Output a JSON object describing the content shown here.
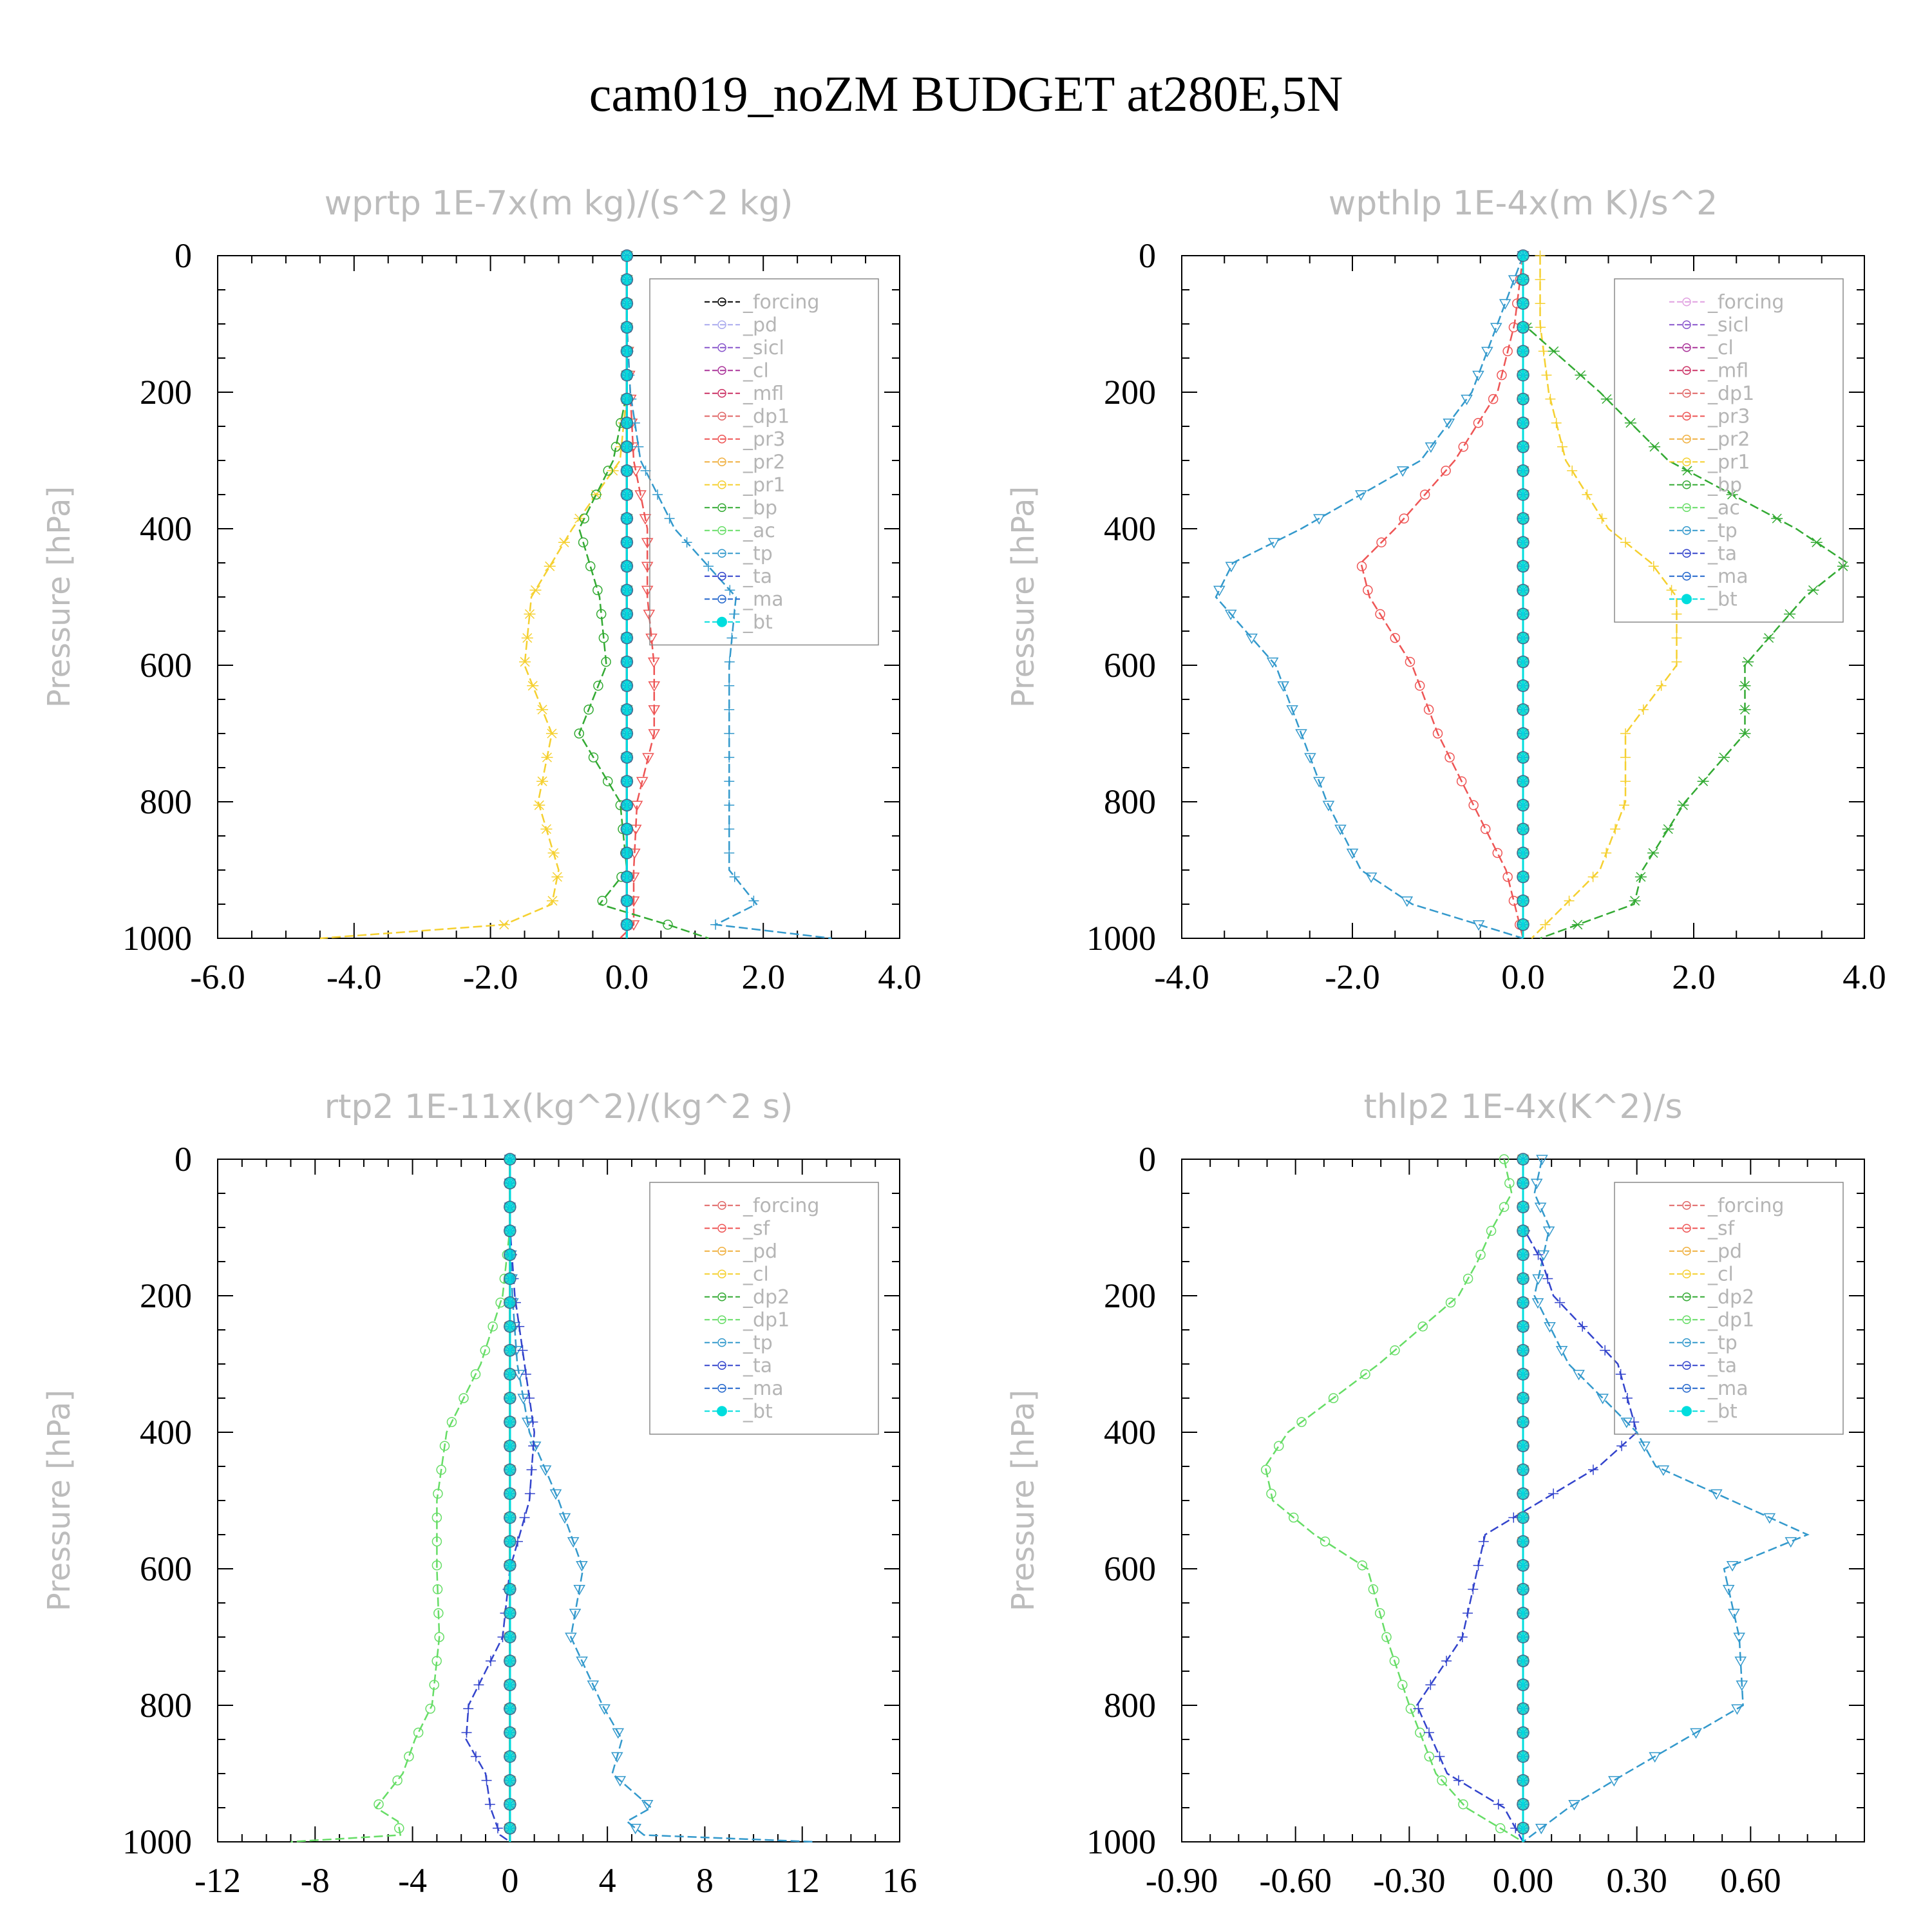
{
  "title": "cam019_noZM  BUDGET at280E,5N",
  "chart_data": [
    {
      "type": "line",
      "title": "wprtp   1E-7x(m kg)/(s^2 kg)",
      "ylabel": "Pressure [hPa]",
      "xlim": [
        -6.0,
        4.0
      ],
      "ylim": [
        1000,
        0
      ],
      "xticks": [
        "-6.0",
        "-4.0",
        "-2.0",
        "0.0",
        "2.0",
        "4.0"
      ],
      "yticks": [
        "0",
        "200",
        "400",
        "600",
        "800",
        "1000"
      ],
      "legend_position": "upper-right",
      "levels": [
        0,
        100,
        200,
        300,
        400,
        500,
        600,
        700,
        800,
        900,
        950,
        980,
        1000
      ],
      "series": [
        {
          "name": "_forcing",
          "color": "#000000",
          "values": [
            0,
            0,
            0,
            0,
            0,
            0,
            0,
            0,
            0,
            0,
            0,
            0,
            0
          ]
        },
        {
          "name": "_pd",
          "color": "#aaaaee",
          "values": [
            0,
            0,
            0,
            0,
            0,
            0,
            0,
            0,
            0,
            0,
            0,
            0,
            0
          ]
        },
        {
          "name": "_sicl",
          "color": "#8855cc",
          "values": [
            0,
            0,
            0,
            0,
            0,
            0,
            0,
            0,
            0,
            0,
            0,
            0,
            0
          ]
        },
        {
          "name": "_cl",
          "color": "#aa3399",
          "values": [
            0,
            0,
            0,
            0,
            0,
            0,
            0,
            0,
            0,
            0,
            0,
            0,
            0
          ]
        },
        {
          "name": "_mfl",
          "color": "#cc3366",
          "values": [
            0,
            0,
            0,
            0,
            0,
            0,
            0,
            0,
            0,
            0,
            0,
            0,
            0
          ]
        },
        {
          "name": "_dp1",
          "color": "#e06666",
          "values": [
            0,
            0,
            0,
            0,
            0,
            0,
            0,
            0,
            0,
            0,
            0,
            0,
            0
          ]
        },
        {
          "name": "_pr3",
          "color": "#ee5555",
          "values": [
            0,
            0,
            0.05,
            0.1,
            0.3,
            0.3,
            0.4,
            0.4,
            0.15,
            0.1,
            0.1,
            0.1,
            -0.1
          ]
        },
        {
          "name": "_pr2",
          "color": "#f0b040",
          "values": [
            0,
            0,
            0,
            0,
            0,
            0,
            0,
            0,
            0,
            0,
            0,
            0,
            0
          ]
        },
        {
          "name": "_pr1",
          "color": "#f5d030",
          "values": [
            0,
            0,
            0,
            -0.1,
            -0.8,
            -1.4,
            -1.5,
            -1.1,
            -1.3,
            -1.0,
            -1.1,
            -1.8,
            -4.5
          ]
        },
        {
          "name": "_bp",
          "color": "#33aa33",
          "values": [
            0,
            0,
            0,
            -0.2,
            -0.7,
            -0.4,
            -0.3,
            -0.7,
            -0.1,
            0.0,
            -0.4,
            0.6,
            1.2
          ]
        },
        {
          "name": "_ac",
          "color": "#66dd66",
          "values": [
            0,
            0,
            0,
            0,
            0,
            0,
            0,
            0,
            0,
            0,
            0,
            0,
            0
          ]
        },
        {
          "name": "_tp",
          "color": "#3399cc",
          "values": [
            0,
            0,
            0.05,
            0.2,
            0.7,
            1.6,
            1.5,
            1.5,
            1.5,
            1.5,
            1.9,
            1.3,
            3.0
          ]
        },
        {
          "name": "_ta",
          "color": "#3344cc",
          "values": [
            0,
            0,
            0,
            0,
            0,
            0,
            0,
            0,
            0,
            0,
            0,
            0,
            0
          ]
        },
        {
          "name": "_ma",
          "color": "#2266cc",
          "values": [
            0,
            0,
            0,
            0,
            0,
            0,
            0,
            0,
            0,
            0,
            0,
            0,
            0
          ]
        },
        {
          "name": "_bt",
          "color": "#00dddd",
          "values": [
            0,
            0,
            0,
            0,
            0,
            0,
            0,
            0,
            0,
            0,
            0,
            0,
            0
          ]
        }
      ]
    },
    {
      "type": "line",
      "title": "wpthlp   1E-4x(m K)/s^2",
      "ylabel": "Pressure [hPa]",
      "xlim": [
        -4.0,
        4.0
      ],
      "ylim": [
        1000,
        0
      ],
      "xticks": [
        "-4.0",
        "-2.0",
        "0.0",
        "2.0",
        "4.0"
      ],
      "yticks": [
        "0",
        "200",
        "400",
        "600",
        "800",
        "1000"
      ],
      "legend_position": "upper-right",
      "levels": [
        0,
        100,
        200,
        300,
        400,
        450,
        500,
        600,
        700,
        800,
        900,
        950,
        1000
      ],
      "series": [
        {
          "name": "_forcing",
          "color": "#e0a0e0",
          "values": [
            0,
            0,
            0,
            0,
            0,
            0,
            0,
            0,
            0,
            0,
            0,
            0,
            0
          ]
        },
        {
          "name": "_sicl",
          "color": "#8855cc",
          "values": [
            0,
            0,
            0,
            0,
            0,
            0,
            0,
            0,
            0,
            0,
            0,
            0,
            0
          ]
        },
        {
          "name": "_cl",
          "color": "#aa3399",
          "values": [
            0,
            0,
            0,
            0,
            0,
            0,
            0,
            0,
            0,
            0,
            0,
            0,
            0
          ]
        },
        {
          "name": "_mfl",
          "color": "#cc3366",
          "values": [
            0,
            0,
            0,
            0,
            0,
            0,
            0,
            0,
            0,
            0,
            0,
            0,
            0
          ]
        },
        {
          "name": "_dp1",
          "color": "#e06666",
          "values": [
            0,
            0,
            0,
            0,
            0,
            0,
            0,
            0,
            0,
            0,
            0,
            0,
            0
          ]
        },
        {
          "name": "_pr3",
          "color": "#ee5555",
          "values": [
            0,
            -0.1,
            -0.3,
            -0.8,
            -1.5,
            -1.9,
            -1.8,
            -1.3,
            -1.0,
            -0.6,
            -0.2,
            -0.1,
            0
          ]
        },
        {
          "name": "_pr2",
          "color": "#f0b040",
          "values": [
            0,
            0,
            0,
            0,
            0,
            0,
            0,
            0,
            0,
            0,
            0,
            0,
            0
          ]
        },
        {
          "name": "_pr1",
          "color": "#f5d030",
          "values": [
            0.2,
            0.2,
            0.3,
            0.5,
            1.0,
            1.5,
            1.8,
            1.8,
            1.2,
            1.2,
            0.9,
            0.5,
            0.1
          ]
        },
        {
          "name": "_bp",
          "color": "#33aa33",
          "values": [
            0,
            0,
            0.9,
            1.7,
            3.2,
            3.8,
            3.3,
            2.6,
            2.6,
            1.9,
            1.4,
            1.3,
            0.2
          ]
        },
        {
          "name": "_ac",
          "color": "#66dd66",
          "values": [
            0,
            0,
            0,
            0,
            0,
            0,
            0,
            0,
            0,
            0,
            0,
            0,
            0
          ]
        },
        {
          "name": "_tp",
          "color": "#3399cc",
          "values": [
            0,
            -0.3,
            -0.6,
            -1.2,
            -2.6,
            -3.4,
            -3.6,
            -2.9,
            -2.6,
            -2.3,
            -1.9,
            -1.3,
            0
          ]
        },
        {
          "name": "_ta",
          "color": "#3344cc",
          "values": [
            0,
            0,
            0,
            0,
            0,
            0,
            0,
            0,
            0,
            0,
            0,
            0,
            0
          ]
        },
        {
          "name": "_ma",
          "color": "#2266cc",
          "values": [
            0,
            0,
            0,
            0,
            0,
            0,
            0,
            0,
            0,
            0,
            0,
            0,
            0
          ]
        },
        {
          "name": "_bt",
          "color": "#00dddd",
          "values": [
            0,
            0,
            0,
            0,
            0,
            0,
            0,
            0,
            0,
            0,
            0,
            0,
            0
          ]
        }
      ]
    },
    {
      "type": "line",
      "title": "rtp2   1E-11x(kg^2)/(kg^2 s)",
      "ylabel": "Pressure [hPa]",
      "xlim": [
        -12,
        16
      ],
      "ylim": [
        1000,
        0
      ],
      "xticks": [
        "-12",
        "-8",
        "-4",
        "0",
        "4",
        "8",
        "12",
        "16"
      ],
      "yticks": [
        "0",
        "200",
        "400",
        "600",
        "800",
        "1000"
      ],
      "legend_position": "upper-right",
      "levels": [
        0,
        100,
        200,
        300,
        400,
        500,
        600,
        700,
        800,
        850,
        900,
        950,
        970,
        990,
        1000
      ],
      "series": [
        {
          "name": "_forcing",
          "color": "#e06666",
          "values": [
            0,
            0,
            0,
            0,
            0,
            0,
            0,
            0,
            0,
            0,
            0,
            0,
            0,
            0,
            0
          ]
        },
        {
          "name": "_sf",
          "color": "#ee5555",
          "values": [
            0,
            0,
            0,
            0,
            0,
            0,
            0,
            0,
            0,
            0,
            0,
            0,
            0,
            0,
            0
          ]
        },
        {
          "name": "_pd",
          "color": "#f0b040",
          "values": [
            0,
            0,
            0,
            0,
            0,
            0,
            0,
            0,
            0,
            0,
            0,
            0,
            0,
            0,
            0
          ]
        },
        {
          "name": "_cl",
          "color": "#f5d030",
          "values": [
            0,
            0,
            0,
            0,
            0,
            0,
            0,
            0,
            0,
            0,
            0,
            0,
            0,
            0,
            0
          ]
        },
        {
          "name": "_dp2",
          "color": "#33aa33",
          "values": [
            0,
            0,
            0,
            0,
            0,
            0,
            0,
            0,
            0,
            0,
            0,
            0,
            0,
            0,
            0
          ]
        },
        {
          "name": "_dp1",
          "color": "#66dd66",
          "values": [
            0,
            0,
            -0.3,
            -1.2,
            -2.6,
            -3.0,
            -3.0,
            -2.9,
            -3.2,
            -3.9,
            -4.4,
            -5.5,
            -4.6,
            -4.5,
            -9.0
          ]
        },
        {
          "name": "_tp",
          "color": "#3399cc",
          "values": [
            0,
            0,
            0.1,
            0.3,
            0.8,
            2.0,
            3.0,
            2.5,
            3.8,
            4.6,
            4.2,
            5.8,
            4.8,
            5.5,
            12.5
          ]
        },
        {
          "name": "_ta",
          "color": "#3344cc",
          "values": [
            0,
            0,
            0.2,
            0.6,
            1.0,
            0.8,
            0.0,
            -0.3,
            -1.7,
            -1.8,
            -1.0,
            -0.8,
            -0.6,
            -0.4,
            0
          ]
        },
        {
          "name": "_ma",
          "color": "#2266cc",
          "values": [
            0,
            0,
            0,
            0,
            0,
            0,
            0,
            0,
            0,
            0,
            0,
            0,
            0,
            0,
            0
          ]
        },
        {
          "name": "_bt",
          "color": "#00dddd",
          "values": [
            0,
            0,
            0,
            0,
            0,
            0,
            0,
            0,
            0,
            0,
            0,
            0,
            0,
            0,
            0
          ]
        }
      ]
    },
    {
      "type": "line",
      "title": "thlp2   1E-4x(K^2)/s",
      "ylabel": "Pressure [hPa]",
      "xlim": [
        -0.9,
        0.9
      ],
      "ylim": [
        1000,
        0
      ],
      "xticks": [
        "-0.90",
        "-0.60",
        "-0.30",
        "0.00",
        "0.30",
        "0.60"
      ],
      "yticks": [
        "0",
        "200",
        "400",
        "600",
        "800",
        "1000"
      ],
      "legend_position": "upper-right",
      "levels": [
        0,
        50,
        100,
        150,
        200,
        300,
        400,
        450,
        500,
        550,
        600,
        700,
        800,
        900,
        950,
        1000
      ],
      "series": [
        {
          "name": "_forcing",
          "color": "#e06666",
          "values": [
            0,
            0,
            0,
            0,
            0,
            0,
            0,
            0,
            0,
            0,
            0,
            0,
            0,
            0,
            0,
            0
          ]
        },
        {
          "name": "_sf",
          "color": "#ee5555",
          "values": [
            0,
            0,
            0,
            0,
            0,
            0,
            0,
            0,
            0,
            0,
            0,
            0,
            0,
            0,
            0,
            0
          ]
        },
        {
          "name": "_pd",
          "color": "#f0b040",
          "values": [
            0,
            0,
            0,
            0,
            0,
            0,
            0,
            0,
            0,
            0,
            0,
            0,
            0,
            0,
            0,
            0
          ]
        },
        {
          "name": "_cl",
          "color": "#f5d030",
          "values": [
            0,
            0,
            0,
            0,
            0,
            0,
            0,
            0,
            0,
            0,
            0,
            0,
            0,
            0,
            0,
            0
          ]
        },
        {
          "name": "_dp2",
          "color": "#33aa33",
          "values": [
            0,
            0,
            0,
            0,
            0,
            0,
            0,
            0,
            0,
            0,
            0,
            0,
            0,
            0,
            0,
            0
          ]
        },
        {
          "name": "_dp1",
          "color": "#66dd66",
          "values": [
            -0.05,
            -0.03,
            -0.08,
            -0.12,
            -0.17,
            -0.38,
            -0.62,
            -0.68,
            -0.66,
            -0.55,
            -0.41,
            -0.36,
            -0.3,
            -0.23,
            -0.15,
            0
          ]
        },
        {
          "name": "_tp",
          "color": "#3399cc",
          "values": [
            0.05,
            0.03,
            0.07,
            0.05,
            0.03,
            0.12,
            0.3,
            0.35,
            0.55,
            0.75,
            0.53,
            0.57,
            0.58,
            0.27,
            0.12,
            0
          ]
        },
        {
          "name": "_ta",
          "color": "#3344cc",
          "values": [
            0,
            0,
            0,
            0.05,
            0.08,
            0.25,
            0.3,
            0.2,
            0.05,
            -0.1,
            -0.12,
            -0.16,
            -0.28,
            -0.2,
            -0.05,
            0
          ]
        },
        {
          "name": "_ma",
          "color": "#2266cc",
          "values": [
            0,
            0,
            0,
            0,
            0,
            0,
            0,
            0,
            0,
            0,
            0,
            0,
            0,
            0,
            0,
            0
          ]
        },
        {
          "name": "_bt",
          "color": "#00dddd",
          "values": [
            0,
            0,
            0,
            0,
            0,
            0,
            0,
            0,
            0,
            0,
            0,
            0,
            0,
            0,
            0,
            0
          ]
        }
      ]
    }
  ]
}
